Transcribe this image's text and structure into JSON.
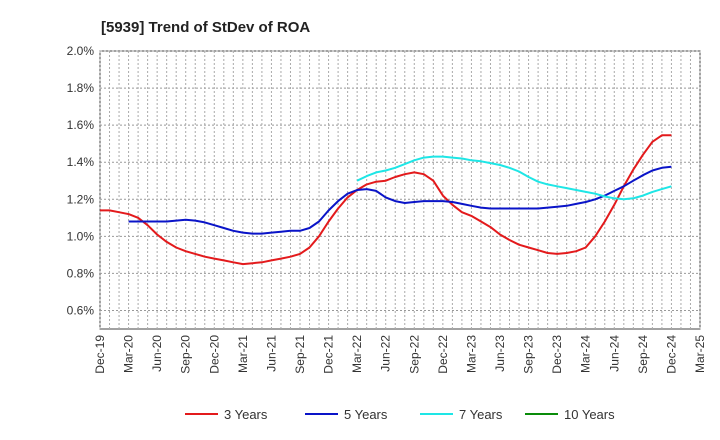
{
  "chart_data": {
    "type": "line",
    "title": "[5939]  Trend of StDev of ROA",
    "xlabel": "",
    "ylabel": "",
    "x_tick_labels": [
      "Dec-19",
      "Mar-20",
      "Jun-20",
      "Sep-20",
      "Dec-20",
      "Mar-21",
      "Jun-21",
      "Sep-21",
      "Dec-21",
      "Mar-22",
      "Jun-22",
      "Sep-22",
      "Dec-22",
      "Mar-23",
      "Jun-23",
      "Sep-23",
      "Dec-23",
      "Mar-24",
      "Jun-24",
      "Sep-24",
      "Dec-24",
      "Mar-25"
    ],
    "y_tick_labels": [
      "0.6%",
      "0.8%",
      "1.0%",
      "1.2%",
      "1.4%",
      "1.6%",
      "1.8%",
      "2.0%"
    ],
    "ylim": [
      0.5,
      2.0
    ],
    "grid": true,
    "legend_position": "bottom",
    "series": [
      {
        "name": "3 Years",
        "color": "#e31a1c",
        "points": [
          [
            "Dec-19",
            1.14
          ],
          [
            "Jan-20",
            1.14
          ],
          [
            "Feb-20",
            1.13
          ],
          [
            "Mar-20",
            1.12
          ],
          [
            "Apr-20",
            1.1
          ],
          [
            "May-20",
            1.06
          ],
          [
            "Jun-20",
            1.01
          ],
          [
            "Jul-20",
            0.97
          ],
          [
            "Aug-20",
            0.94
          ],
          [
            "Sep-20",
            0.92
          ],
          [
            "Oct-20",
            0.905
          ],
          [
            "Nov-20",
            0.89
          ],
          [
            "Dec-20",
            0.88
          ],
          [
            "Jan-21",
            0.87
          ],
          [
            "Feb-21",
            0.86
          ],
          [
            "Mar-21",
            0.85
          ],
          [
            "Apr-21",
            0.855
          ],
          [
            "May-21",
            0.86
          ],
          [
            "Jun-21",
            0.87
          ],
          [
            "Jul-21",
            0.88
          ],
          [
            "Aug-21",
            0.89
          ],
          [
            "Sep-21",
            0.905
          ],
          [
            "Oct-21",
            0.94
          ],
          [
            "Nov-21",
            1.0
          ],
          [
            "Dec-21",
            1.08
          ],
          [
            "Jan-22",
            1.15
          ],
          [
            "Feb-22",
            1.21
          ],
          [
            "Mar-22",
            1.25
          ],
          [
            "Apr-22",
            1.28
          ],
          [
            "May-22",
            1.295
          ],
          [
            "Jun-22",
            1.3
          ],
          [
            "Jul-22",
            1.32
          ],
          [
            "Aug-22",
            1.335
          ],
          [
            "Sep-22",
            1.345
          ],
          [
            "Oct-22",
            1.335
          ],
          [
            "Nov-22",
            1.3
          ],
          [
            "Dec-22",
            1.22
          ],
          [
            "Jan-23",
            1.17
          ],
          [
            "Feb-23",
            1.13
          ],
          [
            "Mar-23",
            1.11
          ],
          [
            "Apr-23",
            1.08
          ],
          [
            "May-23",
            1.05
          ],
          [
            "Jun-23",
            1.01
          ],
          [
            "Jul-23",
            0.98
          ],
          [
            "Aug-23",
            0.955
          ],
          [
            "Sep-23",
            0.94
          ],
          [
            "Oct-23",
            0.925
          ],
          [
            "Nov-23",
            0.91
          ],
          [
            "Dec-23",
            0.905
          ],
          [
            "Jan-24",
            0.91
          ],
          [
            "Feb-24",
            0.92
          ],
          [
            "Mar-24",
            0.94
          ],
          [
            "Apr-24",
            1.0
          ],
          [
            "May-24",
            1.08
          ],
          [
            "Jun-24",
            1.17
          ],
          [
            "Jul-24",
            1.27
          ],
          [
            "Aug-24",
            1.36
          ],
          [
            "Sep-24",
            1.44
          ],
          [
            "Oct-24",
            1.51
          ],
          [
            "Nov-24",
            1.545
          ],
          [
            "Dec-24",
            1.545
          ]
        ]
      },
      {
        "name": "5 Years",
        "color": "#0a14c8",
        "points": [
          [
            "Mar-20",
            1.08
          ],
          [
            "Apr-20",
            1.08
          ],
          [
            "May-20",
            1.08
          ],
          [
            "Jun-20",
            1.08
          ],
          [
            "Jul-20",
            1.08
          ],
          [
            "Aug-20",
            1.085
          ],
          [
            "Sep-20",
            1.09
          ],
          [
            "Oct-20",
            1.085
          ],
          [
            "Nov-20",
            1.075
          ],
          [
            "Dec-20",
            1.06
          ],
          [
            "Jan-21",
            1.045
          ],
          [
            "Feb-21",
            1.03
          ],
          [
            "Mar-21",
            1.02
          ],
          [
            "Apr-21",
            1.015
          ],
          [
            "May-21",
            1.015
          ],
          [
            "Jun-21",
            1.02
          ],
          [
            "Jul-21",
            1.025
          ],
          [
            "Aug-21",
            1.03
          ],
          [
            "Sep-21",
            1.03
          ],
          [
            "Oct-21",
            1.045
          ],
          [
            "Nov-21",
            1.08
          ],
          [
            "Dec-21",
            1.14
          ],
          [
            "Jan-22",
            1.19
          ],
          [
            "Feb-22",
            1.23
          ],
          [
            "Mar-22",
            1.25
          ],
          [
            "Apr-22",
            1.255
          ],
          [
            "May-22",
            1.245
          ],
          [
            "Jun-22",
            1.21
          ],
          [
            "Jul-22",
            1.19
          ],
          [
            "Aug-22",
            1.18
          ],
          [
            "Sep-22",
            1.185
          ],
          [
            "Oct-22",
            1.19
          ],
          [
            "Nov-22",
            1.19
          ],
          [
            "Dec-22",
            1.19
          ],
          [
            "Jan-23",
            1.185
          ],
          [
            "Feb-23",
            1.175
          ],
          [
            "Mar-23",
            1.165
          ],
          [
            "Apr-23",
            1.155
          ],
          [
            "May-23",
            1.15
          ],
          [
            "Jun-23",
            1.15
          ],
          [
            "Jul-23",
            1.15
          ],
          [
            "Aug-23",
            1.15
          ],
          [
            "Sep-23",
            1.15
          ],
          [
            "Oct-23",
            1.15
          ],
          [
            "Nov-23",
            1.155
          ],
          [
            "Dec-23",
            1.16
          ],
          [
            "Jan-24",
            1.165
          ],
          [
            "Feb-24",
            1.175
          ],
          [
            "Mar-24",
            1.185
          ],
          [
            "Apr-24",
            1.2
          ],
          [
            "May-24",
            1.22
          ],
          [
            "Jun-24",
            1.245
          ],
          [
            "Jul-24",
            1.27
          ],
          [
            "Aug-24",
            1.3
          ],
          [
            "Sep-24",
            1.33
          ],
          [
            "Oct-24",
            1.355
          ],
          [
            "Nov-24",
            1.37
          ],
          [
            "Dec-24",
            1.375
          ]
        ]
      },
      {
        "name": "7 Years",
        "color": "#1ee6e6",
        "points": [
          [
            "Mar-22",
            1.3
          ],
          [
            "Apr-22",
            1.325
          ],
          [
            "May-22",
            1.345
          ],
          [
            "Jun-22",
            1.355
          ],
          [
            "Jul-22",
            1.37
          ],
          [
            "Aug-22",
            1.39
          ],
          [
            "Sep-22",
            1.41
          ],
          [
            "Oct-22",
            1.425
          ],
          [
            "Nov-22",
            1.43
          ],
          [
            "Dec-22",
            1.43
          ],
          [
            "Jan-23",
            1.425
          ],
          [
            "Feb-23",
            1.42
          ],
          [
            "Mar-23",
            1.41
          ],
          [
            "Apr-23",
            1.405
          ],
          [
            "May-23",
            1.395
          ],
          [
            "Jun-23",
            1.385
          ],
          [
            "Jul-23",
            1.37
          ],
          [
            "Aug-23",
            1.35
          ],
          [
            "Sep-23",
            1.32
          ],
          [
            "Oct-23",
            1.295
          ],
          [
            "Nov-23",
            1.28
          ],
          [
            "Dec-23",
            1.27
          ],
          [
            "Jan-24",
            1.26
          ],
          [
            "Feb-24",
            1.25
          ],
          [
            "Mar-24",
            1.24
          ],
          [
            "Apr-24",
            1.23
          ],
          [
            "May-24",
            1.215
          ],
          [
            "Jun-24",
            1.205
          ],
          [
            "Jul-24",
            1.2
          ],
          [
            "Aug-24",
            1.205
          ],
          [
            "Sep-24",
            1.22
          ],
          [
            "Oct-24",
            1.24
          ],
          [
            "Nov-24",
            1.255
          ],
          [
            "Dec-24",
            1.27
          ]
        ]
      },
      {
        "name": "10 Years",
        "color": "#0a8c0a",
        "points": []
      }
    ]
  }
}
